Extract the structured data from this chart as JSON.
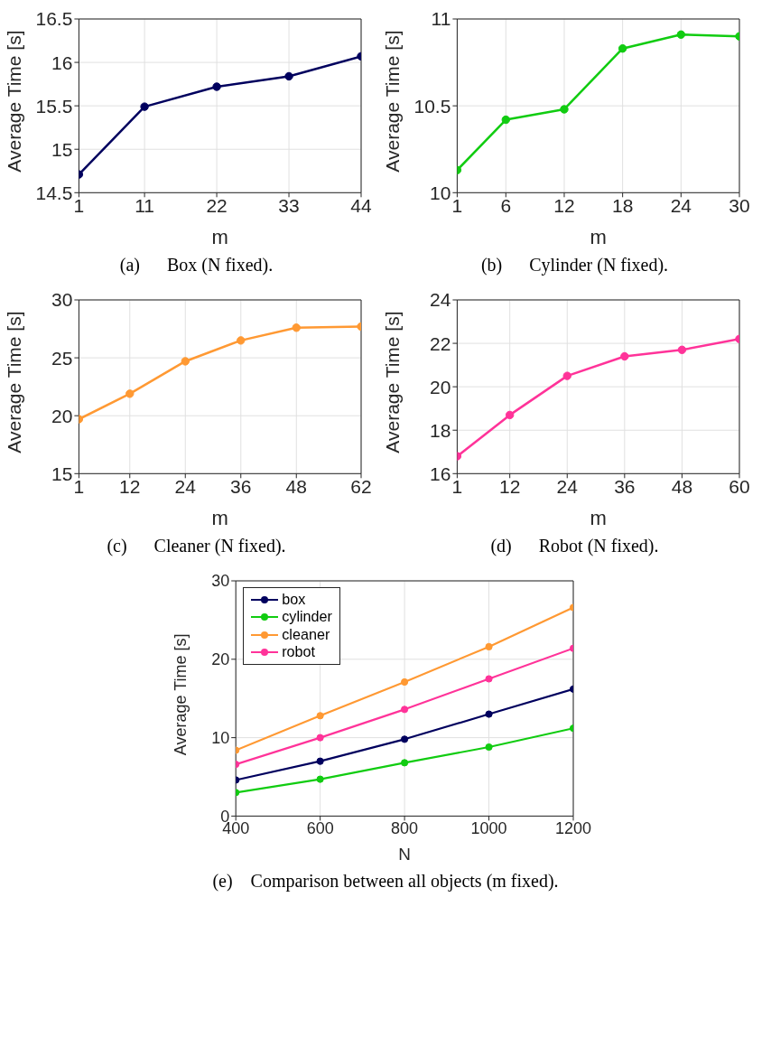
{
  "chart_data": [
    {
      "type": "line",
      "xlabel": "m",
      "ylabel": "Average Time [s]",
      "annotations": [
        "(a)      Box (N fixed)."
      ],
      "x": [
        1,
        11,
        22,
        33,
        44
      ],
      "xlim": [
        1,
        44
      ],
      "xticks": [
        1,
        11,
        22,
        33,
        44
      ],
      "ylim": [
        14.5,
        16.5
      ],
      "yticks": [
        14.5,
        15,
        15.5,
        16,
        16.5
      ],
      "grid": true,
      "marker": "circle",
      "series": [
        {
          "color": "#00005e",
          "values": [
            14.71,
            15.49,
            15.72,
            15.84,
            16.07
          ]
        }
      ]
    },
    {
      "type": "line",
      "xlabel": "m",
      "ylabel": "Average Time [s]",
      "annotations": [
        "(b)      Cylinder (N fixed)."
      ],
      "x": [
        1,
        6,
        12,
        18,
        24,
        30
      ],
      "xlim": [
        1,
        30
      ],
      "xticks": [
        1,
        6,
        12,
        18,
        24,
        30
      ],
      "ylim": [
        10,
        11
      ],
      "yticks": [
        10,
        10.5,
        11
      ],
      "grid": true,
      "marker": "circle",
      "series": [
        {
          "color": "#11cc11",
          "values": [
            10.13,
            10.42,
            10.48,
            10.83,
            10.91,
            10.9
          ]
        }
      ]
    },
    {
      "type": "line",
      "xlabel": "m",
      "ylabel": "Average Time [s]",
      "annotations": [
        "(c)      Cleaner (N fixed)."
      ],
      "x": [
        1,
        12,
        24,
        36,
        48,
        62
      ],
      "xlim": [
        1,
        62
      ],
      "xticks": [
        1,
        12,
        24,
        36,
        48,
        62
      ],
      "ylim": [
        15,
        30
      ],
      "yticks": [
        15,
        20,
        25,
        30
      ],
      "grid": true,
      "marker": "circle",
      "series": [
        {
          "color": "#ff9933",
          "values": [
            19.7,
            21.9,
            24.7,
            26.5,
            27.6,
            27.7
          ]
        }
      ]
    },
    {
      "type": "line",
      "xlabel": "m",
      "ylabel": "Average Time [s]",
      "annotations": [
        "(d)      Robot (N fixed)."
      ],
      "x": [
        1,
        12,
        24,
        36,
        48,
        60
      ],
      "xlim": [
        1,
        60
      ],
      "xticks": [
        1,
        12,
        24,
        36,
        48,
        60
      ],
      "ylim": [
        16,
        24
      ],
      "yticks": [
        16,
        18,
        20,
        22,
        24
      ],
      "grid": true,
      "marker": "circle",
      "series": [
        {
          "color": "#ff3399",
          "values": [
            16.8,
            18.7,
            20.5,
            21.4,
            21.7,
            22.2
          ]
        }
      ]
    },
    {
      "type": "line",
      "xlabel": "N",
      "ylabel": "Average Time [s]",
      "annotations": [
        "(e)    Comparison between all objects (m fixed)."
      ],
      "x": [
        400,
        600,
        800,
        1000,
        1200
      ],
      "xlim": [
        400,
        1200
      ],
      "xticks": [
        400,
        600,
        800,
        1000,
        1200
      ],
      "ylim": [
        0,
        30
      ],
      "yticks": [
        0,
        10,
        20,
        30
      ],
      "grid": true,
      "marker": "circle",
      "legend": "top left",
      "series": [
        {
          "name": "box",
          "color": "#00005e",
          "values": [
            4.6,
            7.0,
            9.8,
            13.0,
            16.2
          ]
        },
        {
          "name": "cylinder",
          "color": "#11cc11",
          "values": [
            3.0,
            4.7,
            6.8,
            8.8,
            11.2
          ]
        },
        {
          "name": "cleaner",
          "color": "#ff9933",
          "values": [
            8.4,
            12.8,
            17.1,
            21.6,
            26.6
          ]
        },
        {
          "name": "robot",
          "color": "#ff3399",
          "values": [
            6.6,
            10.0,
            13.6,
            17.5,
            21.4
          ]
        }
      ]
    }
  ]
}
